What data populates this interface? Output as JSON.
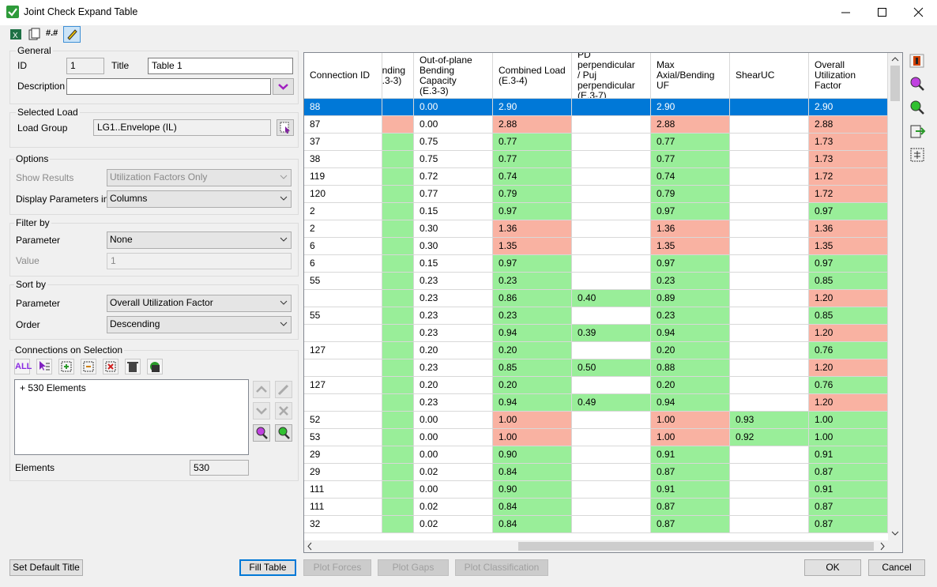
{
  "window": {
    "title": "Joint Check Expand Table"
  },
  "toolbar": {
    "number_format": "#.#"
  },
  "general": {
    "legend": "General",
    "id_label": "ID",
    "id_value": "1",
    "title_label": "Title",
    "title_value": "Table 1",
    "description_label": "Description"
  },
  "selected_load": {
    "legend": "Selected Load",
    "load_group_label": "Load Group",
    "load_group_value": "LG1..Envelope (IL)"
  },
  "options": {
    "legend": "Options",
    "show_results_label": "Show Results",
    "show_results_value": "Utilization Factors Only",
    "display_label": "Display Parameters in",
    "display_value": "Columns"
  },
  "filter": {
    "legend": "Filter by",
    "parameter_label": "Parameter",
    "parameter_value": "None",
    "value_label": "Value",
    "value_value": "1"
  },
  "sort": {
    "legend": "Sort by",
    "parameter_label": "Parameter",
    "parameter_value": "Overall Utilization Factor",
    "order_label": "Order",
    "order_value": "Descending"
  },
  "connections": {
    "legend": "Connections on Selection",
    "all_button": "ALL",
    "list_item": "+ 530 Elements",
    "elements_label": "Elements",
    "elements_value": "530"
  },
  "table": {
    "headers": [
      "Connection ID",
      "nding\n.3-3)",
      "Out-of-plane\nBending Capacity\n(E.3-3)",
      "Combined Load\n(E.3-4)",
      "PD perpendicular\n/ Puj\nperpendicular\n(E.3-7)",
      "Max\nAxial/Bending UF",
      "ShearUC",
      "Overall Utilization\nFactor"
    ],
    "palette": {
      "w": "#ffffff",
      "g": "#99ee99",
      "r": "#f9b2a2"
    },
    "selected_row": 0,
    "rows": [
      {
        "cells": [
          "88",
          null,
          "0.00",
          "2.90",
          null,
          "2.90",
          null,
          "2.90"
        ],
        "status": "wwwwwwww"
      },
      {
        "cells": [
          "87",
          null,
          "0.00",
          "2.88",
          null,
          "2.88",
          null,
          "2.88"
        ],
        "status": "wrwrwrwr"
      },
      {
        "cells": [
          "37",
          null,
          "0.75",
          "0.77",
          null,
          "0.77",
          null,
          "1.73"
        ],
        "status": "wgwgwgwr"
      },
      {
        "cells": [
          "38",
          null,
          "0.75",
          "0.77",
          null,
          "0.77",
          null,
          "1.73"
        ],
        "status": "wgwgwgwr"
      },
      {
        "cells": [
          "119",
          null,
          "0.72",
          "0.74",
          null,
          "0.74",
          null,
          "1.72"
        ],
        "status": "wgwgwgwr"
      },
      {
        "cells": [
          "120",
          null,
          "0.77",
          "0.79",
          null,
          "0.79",
          null,
          "1.72"
        ],
        "status": "wgwgwgwr"
      },
      {
        "cells": [
          "2",
          null,
          "0.15",
          "0.97",
          null,
          "0.97",
          null,
          "0.97"
        ],
        "status": "wgwgwgwg"
      },
      {
        "cells": [
          "2",
          null,
          "0.30",
          "1.36",
          null,
          "1.36",
          null,
          "1.36"
        ],
        "status": "wgwrwrwr"
      },
      {
        "cells": [
          "6",
          null,
          "0.30",
          "1.35",
          null,
          "1.35",
          null,
          "1.35"
        ],
        "status": "wgwrwrwr"
      },
      {
        "cells": [
          "6",
          null,
          "0.15",
          "0.97",
          null,
          "0.97",
          null,
          "0.97"
        ],
        "status": "wgwgwgwg"
      },
      {
        "cells": [
          "55",
          null,
          "0.23",
          "0.23",
          null,
          "0.23",
          null,
          "0.85"
        ],
        "status": "wgwgwgwg"
      },
      {
        "cells": [
          null,
          null,
          "0.23",
          "0.86",
          "0.40",
          "0.89",
          null,
          "1.20"
        ],
        "status": "wgwgggwr"
      },
      {
        "cells": [
          "55",
          null,
          "0.23",
          "0.23",
          null,
          "0.23",
          null,
          "0.85"
        ],
        "status": "wgwgwgwg"
      },
      {
        "cells": [
          null,
          null,
          "0.23",
          "0.94",
          "0.39",
          "0.94",
          null,
          "1.20"
        ],
        "status": "wgwgggwr"
      },
      {
        "cells": [
          "127",
          null,
          "0.20",
          "0.20",
          null,
          "0.20",
          null,
          "0.76"
        ],
        "status": "wgwgwgwg"
      },
      {
        "cells": [
          null,
          null,
          "0.23",
          "0.85",
          "0.50",
          "0.88",
          null,
          "1.20"
        ],
        "status": "wgwgggwr"
      },
      {
        "cells": [
          "127",
          null,
          "0.20",
          "0.20",
          null,
          "0.20",
          null,
          "0.76"
        ],
        "status": "wgwgwgwg"
      },
      {
        "cells": [
          null,
          null,
          "0.23",
          "0.94",
          "0.49",
          "0.94",
          null,
          "1.20"
        ],
        "status": "wgwgggwr"
      },
      {
        "cells": [
          "52",
          null,
          "0.00",
          "1.00",
          null,
          "1.00",
          "0.93",
          "1.00"
        ],
        "status": "wgwrwrgg"
      },
      {
        "cells": [
          "53",
          null,
          "0.00",
          "1.00",
          null,
          "1.00",
          "0.92",
          "1.00"
        ],
        "status": "wgwrwrgg"
      },
      {
        "cells": [
          "29",
          null,
          "0.00",
          "0.90",
          null,
          "0.91",
          null,
          "0.91"
        ],
        "status": "wgwgwgwg"
      },
      {
        "cells": [
          "29",
          null,
          "0.02",
          "0.84",
          null,
          "0.87",
          null,
          "0.87"
        ],
        "status": "wgwgwgwg"
      },
      {
        "cells": [
          "111",
          null,
          "0.00",
          "0.90",
          null,
          "0.91",
          null,
          "0.91"
        ],
        "status": "wgwgwgwg"
      },
      {
        "cells": [
          "111",
          null,
          "0.02",
          "0.84",
          null,
          "0.87",
          null,
          "0.87"
        ],
        "status": "wgwgwgwg"
      },
      {
        "cells": [
          "32",
          null,
          "0.02",
          "0.84",
          null,
          "0.87",
          null,
          "0.87"
        ],
        "status": "wgwgwgwg"
      }
    ]
  },
  "buttons": {
    "set_default_title": "Set Default Title",
    "fill_table": "Fill Table",
    "plot_forces": "Plot Forces",
    "plot_gaps": "Plot Gaps",
    "plot_classification": "Plot Classification",
    "ok": "OK",
    "cancel": "Cancel"
  }
}
